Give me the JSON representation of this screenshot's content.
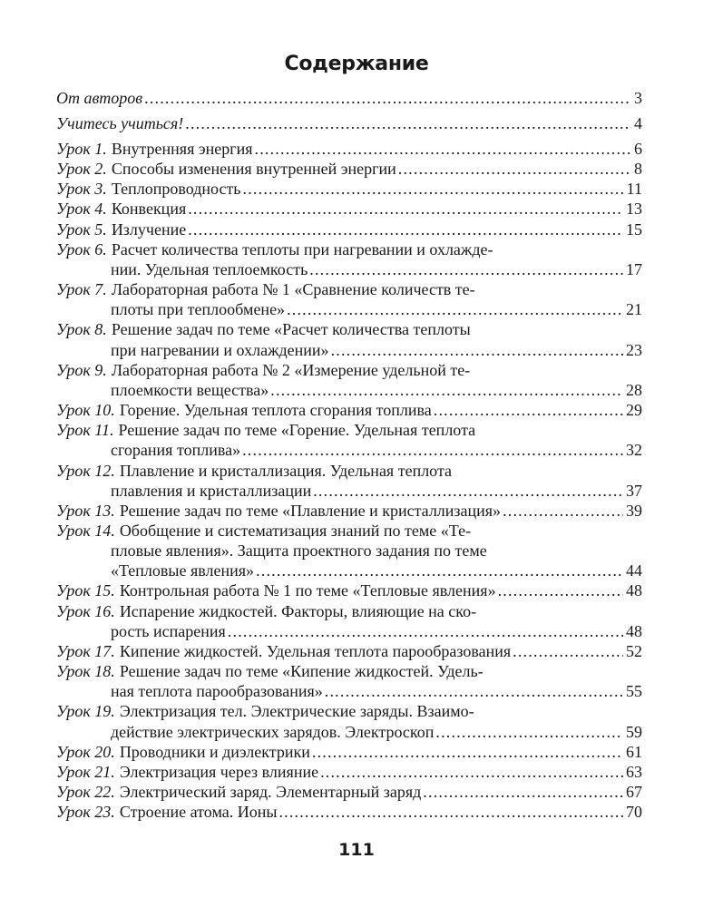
{
  "title": "Содержание",
  "entries": [
    {
      "prefix": "От авторов",
      "lines": [
        ""
      ],
      "page": "3",
      "lead": true
    },
    {
      "prefix": "Учитесь учиться!",
      "lines": [
        ""
      ],
      "page": "4",
      "lead": true
    },
    {
      "prefix": "Урок 1.",
      "lines": [
        "Внутренняя энергия"
      ],
      "page": "6"
    },
    {
      "prefix": "Урок 2.",
      "lines": [
        "Способы изменения внутренней энергии"
      ],
      "page": "8"
    },
    {
      "prefix": "Урок 3.",
      "lines": [
        "Теплопроводность"
      ],
      "page": "11"
    },
    {
      "prefix": "Урок 4.",
      "lines": [
        "Конвекция"
      ],
      "page": "13"
    },
    {
      "prefix": "Урок 5.",
      "lines": [
        "Излучение"
      ],
      "page": "15"
    },
    {
      "prefix": "Урок 6.",
      "lines": [
        "Расчет количества теплоты при нагревании и охлажде-",
        "нии. Удельная теплоемкость"
      ],
      "page": "17"
    },
    {
      "prefix": "Урок 7.",
      "lines": [
        "Лабораторная работа № 1 «Сравнение количеств те-",
        "плоты при теплообмене»"
      ],
      "page": "21"
    },
    {
      "prefix": "Урок 8.",
      "lines": [
        "Решение задач по теме «Расчет количества теплоты",
        "при нагревании и охлаждении»"
      ],
      "page": "23"
    },
    {
      "prefix": "Урок 9.",
      "lines": [
        "Лабораторная работа № 2 «Измерение удельной те-",
        "плоемкости вещества»"
      ],
      "page": "28"
    },
    {
      "prefix": "Урок 10.",
      "lines": [
        "Горение. Удельная теплота сгорания топлива"
      ],
      "page": "29"
    },
    {
      "prefix": "Урок 11.",
      "lines": [
        "Решение задач по теме «Горение. Удельная теплота",
        "сгорания топлива»"
      ],
      "page": "32"
    },
    {
      "prefix": "Урок 12.",
      "lines": [
        "Плавление и кристаллизация. Удельная теплота",
        "плавления и кристаллизации"
      ],
      "page": "37"
    },
    {
      "prefix": "Урок 13.",
      "lines": [
        "Решение задач по теме «Плавление и кристаллизация»"
      ],
      "page": "39"
    },
    {
      "prefix": "Урок 14.",
      "lines": [
        "Обобщение и систематизация знаний по теме «Те-",
        "пловые явления». Защита проектного задания по теме",
        "«Тепловые явления»"
      ],
      "page": "44"
    },
    {
      "prefix": "Урок 15.",
      "lines": [
        "Контрольная работа № 1 по теме «Тепловые явления»"
      ],
      "page": "48"
    },
    {
      "prefix": "Урок 16.",
      "lines": [
        "Испарение жидкостей. Факторы, влияющие на ско-",
        "рость испарения"
      ],
      "page": "48"
    },
    {
      "prefix": "Урок 17.",
      "lines": [
        "Кипение жидкостей. Удельная теплота парообразования"
      ],
      "page": "52"
    },
    {
      "prefix": "Урок 18.",
      "lines": [
        "Решение задач по теме «Кипение жидкостей. Удель-",
        "ная теплота парообразования»"
      ],
      "page": "55"
    },
    {
      "prefix": "Урок 19.",
      "lines": [
        "Электризация тел. Электрические заряды. Взаимо-",
        "действие электрических зарядов. Электроскоп"
      ],
      "page": "59"
    },
    {
      "prefix": "Урок 20.",
      "lines": [
        "Проводники и диэлектрики"
      ],
      "page": "61"
    },
    {
      "prefix": "Урок 21.",
      "lines": [
        "Электризация через влияние"
      ],
      "page": "63"
    },
    {
      "prefix": "Урок 22.",
      "lines": [
        "Электрический заряд. Элементарный заряд"
      ],
      "page": "67"
    },
    {
      "prefix": "Урок 23.",
      "lines": [
        "Строение атома. Ионы"
      ],
      "page": "70"
    }
  ],
  "page_number": "111"
}
